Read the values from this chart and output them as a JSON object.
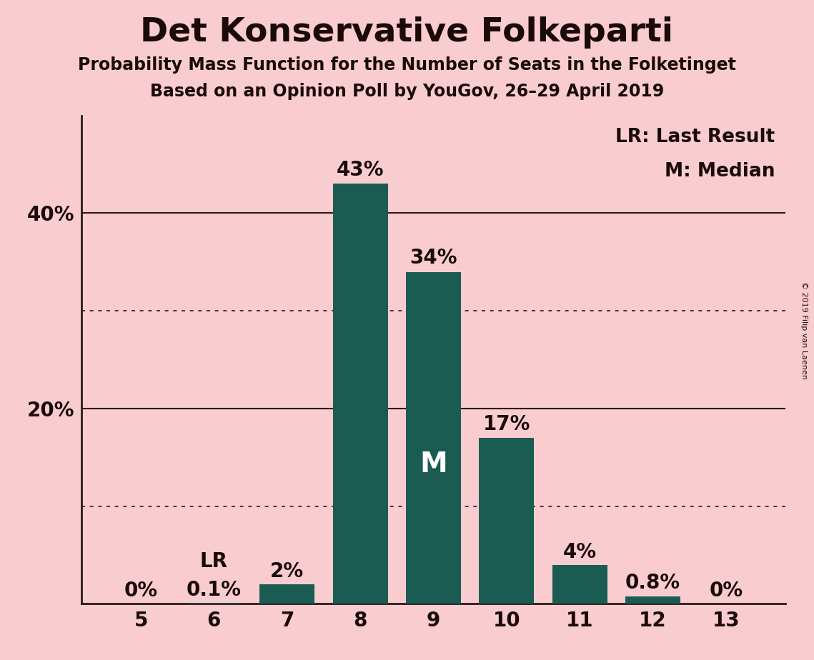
{
  "title": "Det Konservative Folkeparti",
  "subtitle1": "Probability Mass Function for the Number of Seats in the Folketinget",
  "subtitle2": "Based on an Opinion Poll by YouGov, 26–29 April 2019",
  "copyright": "© 2019 Filip van Laenen",
  "categories": [
    5,
    6,
    7,
    8,
    9,
    10,
    11,
    12,
    13
  ],
  "values": [
    0.0,
    0.1,
    2.0,
    43.0,
    34.0,
    17.0,
    4.0,
    0.8,
    0.0
  ],
  "bar_color": "#1a5c52",
  "background_color": "#f9cdd0",
  "bar_labels": [
    "0%",
    "0.1%",
    "2%",
    "43%",
    "34%",
    "17%",
    "4%",
    "0.8%",
    "0%"
  ],
  "inside_labels": [
    "",
    "",
    "",
    "",
    "M",
    "",
    "",
    "",
    ""
  ],
  "lr_idx": 1,
  "ylim": [
    0,
    50
  ],
  "solid_gridlines": [
    20,
    40
  ],
  "dotted_gridlines": [
    10,
    30
  ],
  "ytick_positions": [
    20,
    40
  ],
  "ytick_labels": [
    "20%",
    "40%"
  ],
  "legend_text1": "LR: Last Result",
  "legend_text2": "M: Median",
  "title_fontsize": 34,
  "subtitle_fontsize": 17,
  "tick_fontsize": 20,
  "legend_fontsize": 19,
  "bar_label_fontsize": 20,
  "inside_label_fontsize": 28
}
